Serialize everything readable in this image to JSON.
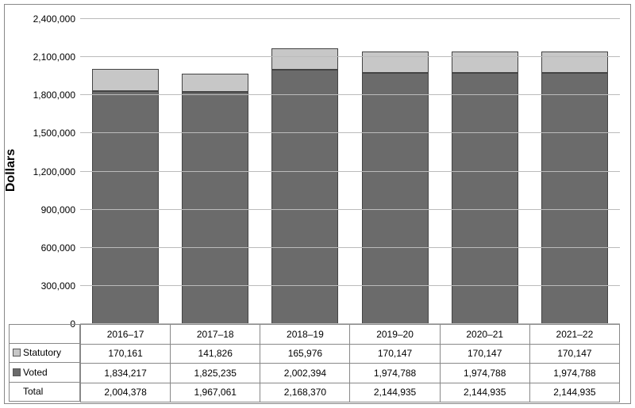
{
  "y_axis_label": "Dollars",
  "ylim": [
    0,
    2400000
  ],
  "ytick_step": 300000,
  "y_ticks": [
    "0",
    "300,000",
    "600,000",
    "900,000",
    "1,200,000",
    "1,500,000",
    "1,800,000",
    "2,100,000",
    "2,400,000"
  ],
  "grid_color": "#bbbbbb",
  "background_color": "#ffffff",
  "border_color": "#888888",
  "label_fontsize": 16,
  "tick_fontsize": 12,
  "bar_width": 0.74,
  "categories": [
    "2016–17",
    "2017–18",
    "2018–19",
    "2019–20",
    "2020–21",
    "2021–22"
  ],
  "series": {
    "statutory": {
      "label": "Statutory",
      "color": "#c7c7c7",
      "values": [
        170161,
        141826,
        165976,
        170147,
        170147,
        170147
      ],
      "display": [
        "170,161",
        "141,826",
        "165,976",
        "170,147",
        "170,147",
        "170,147"
      ]
    },
    "voted": {
      "label": "Voted",
      "color": "#6b6b6b",
      "values": [
        1834217,
        1825235,
        2002394,
        1974788,
        1974788,
        1974788
      ],
      "display": [
        "1,834,217",
        "1,825,235",
        "2,002,394",
        "1,974,788",
        "1,974,788",
        "1,974,788"
      ]
    }
  },
  "total": {
    "label": "Total",
    "display": [
      "2,004,378",
      "1,967,061",
      "2,168,370",
      "2,144,935",
      "2,144,935",
      "2,144,935"
    ]
  }
}
